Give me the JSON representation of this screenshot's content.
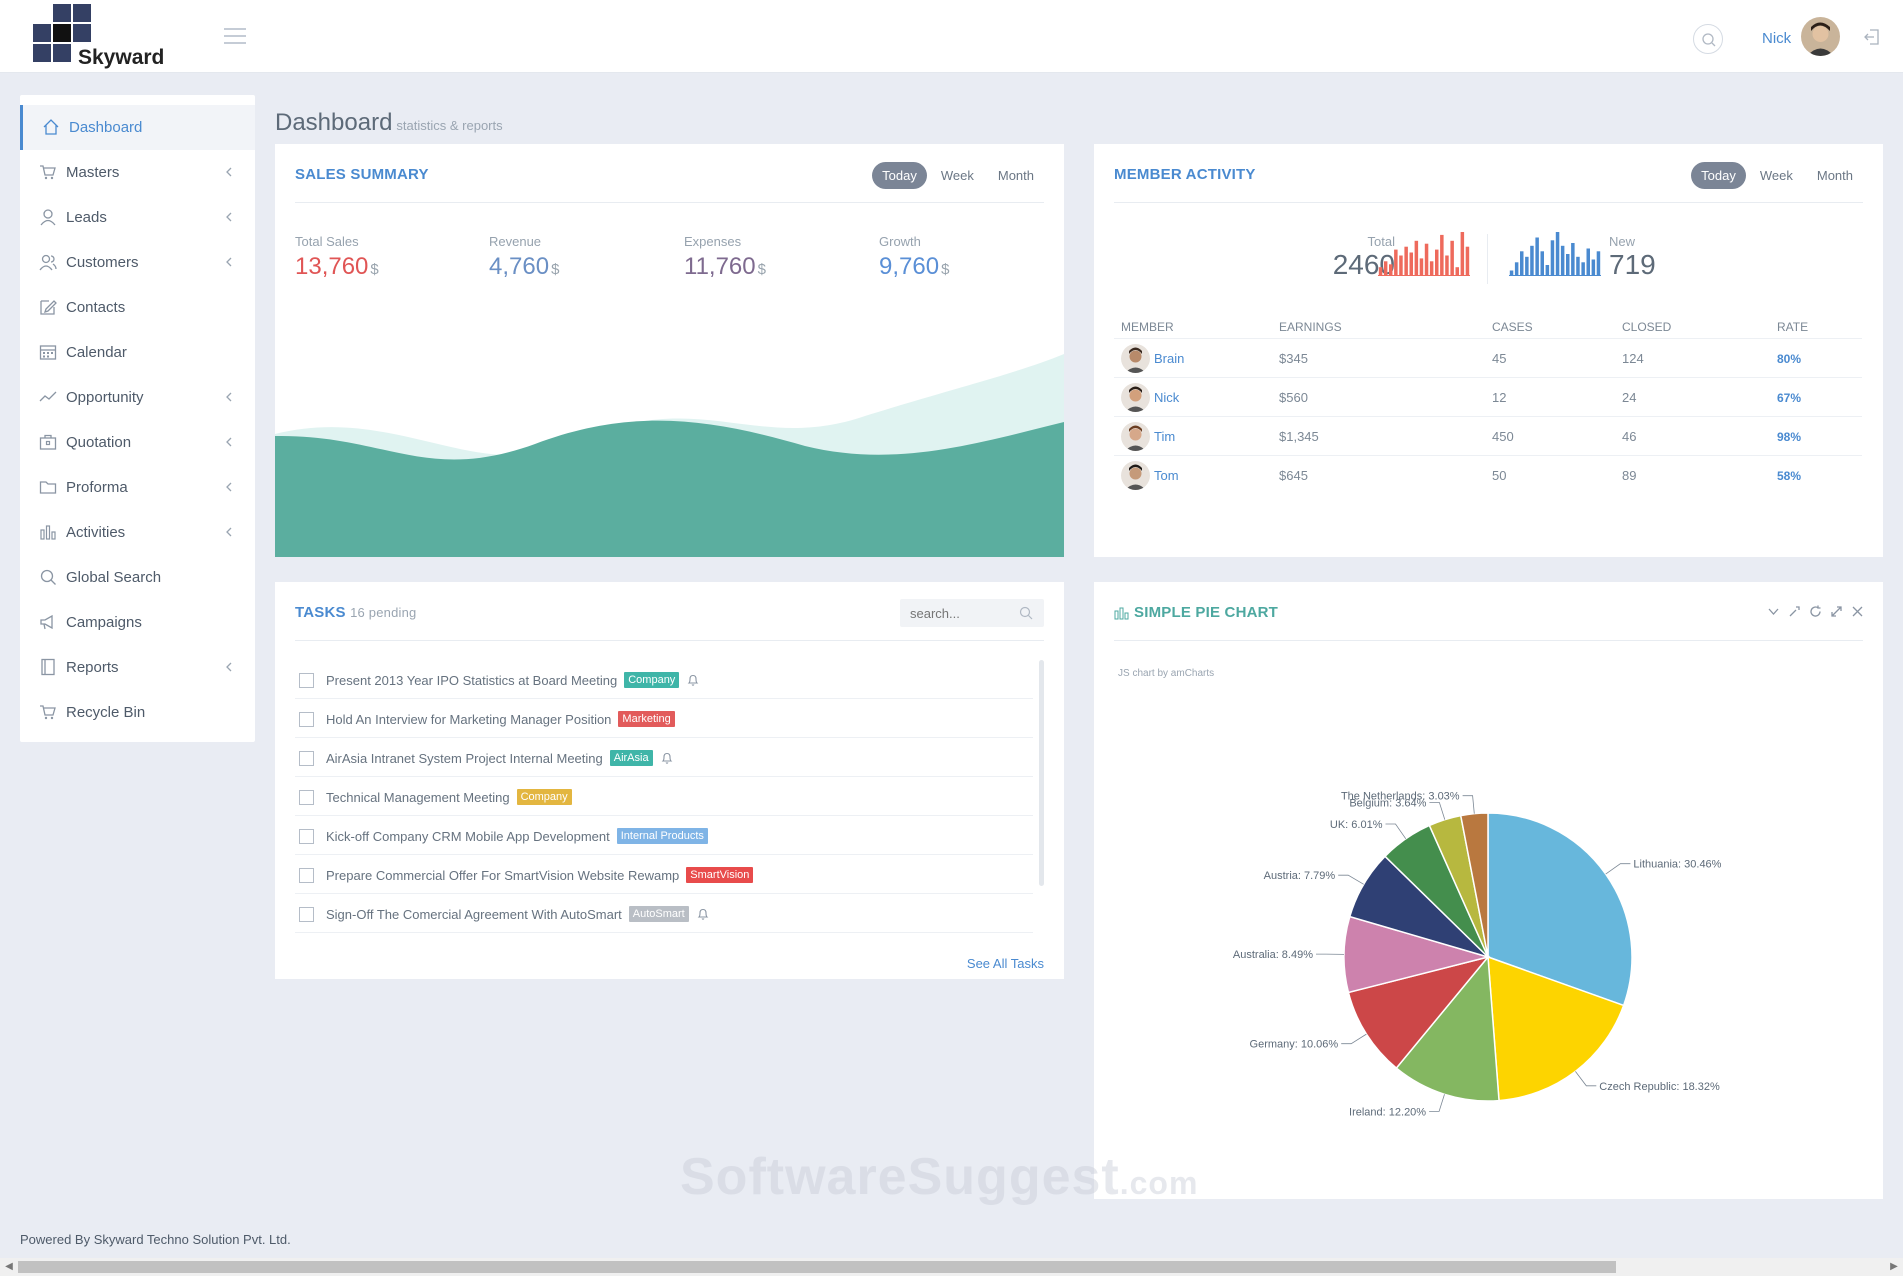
{
  "header": {
    "logo_text": "Skyward",
    "user_name": "Nick"
  },
  "sidebar": {
    "items": [
      {
        "label": "Dashboard",
        "icon": "home-icon",
        "active": true,
        "has_children": false
      },
      {
        "label": "Masters",
        "icon": "cart-icon",
        "has_children": true
      },
      {
        "label": "Leads",
        "icon": "user-icon",
        "has_children": true
      },
      {
        "label": "Customers",
        "icon": "users-icon",
        "has_children": true
      },
      {
        "label": "Contacts",
        "icon": "edit-icon",
        "has_children": false
      },
      {
        "label": "Calendar",
        "icon": "calendar-icon",
        "has_children": false
      },
      {
        "label": "Opportunity",
        "icon": "trend-icon",
        "has_children": true
      },
      {
        "label": "Quotation",
        "icon": "briefcase-icon",
        "has_children": true
      },
      {
        "label": "Proforma",
        "icon": "folder-icon",
        "has_children": true
      },
      {
        "label": "Activities",
        "icon": "bar-chart-icon",
        "has_children": true
      },
      {
        "label": "Global Search",
        "icon": "search-icon",
        "has_children": false
      },
      {
        "label": "Campaigns",
        "icon": "megaphone-icon",
        "has_children": false
      },
      {
        "label": "Reports",
        "icon": "book-icon",
        "has_children": true
      },
      {
        "label": "Recycle Bin",
        "icon": "cart-icon",
        "has_children": false
      }
    ]
  },
  "page": {
    "title": "Dashboard",
    "subtitle": "statistics & reports"
  },
  "sales_summary": {
    "title": "SALES SUMMARY",
    "tabs": [
      "Today",
      "Week",
      "Month"
    ],
    "stats": [
      {
        "label": "Total Sales",
        "value": "13,760",
        "unit": "$",
        "color": "#e05555"
      },
      {
        "label": "Revenue",
        "value": "4,760",
        "unit": "$",
        "color": "#6a8fc4"
      },
      {
        "label": "Expenses",
        "value": "11,760",
        "unit": "$",
        "color": "#7e6a8f"
      },
      {
        "label": "Growth",
        "value": "9,760",
        "unit": "$",
        "color": "#5a8fd6"
      }
    ],
    "area_colors": {
      "back": "#e0f3f1",
      "front": "#5bae9f"
    }
  },
  "member_activity": {
    "title": "MEMBER ACTIVITY",
    "tabs": [
      "Today",
      "Week",
      "Month"
    ],
    "total_label": "Total",
    "total_value": "2460",
    "new_label": "New",
    "new_value": "719",
    "total_bars": [
      3,
      5,
      4,
      9,
      7,
      10,
      8,
      12,
      6,
      11,
      5,
      9,
      14,
      7,
      12,
      3,
      15,
      10
    ],
    "new_bars": [
      2,
      5,
      9,
      7,
      11,
      14,
      9,
      4,
      13,
      16,
      11,
      8,
      12,
      7,
      5,
      10,
      6,
      9
    ],
    "columns": [
      "MEMBER",
      "EARNINGS",
      "CASES",
      "CLOSED",
      "RATE"
    ],
    "rows": [
      {
        "member": "Brain",
        "earnings": "$345",
        "cases": "45",
        "closed": "124",
        "rate": "80%"
      },
      {
        "member": "Nick",
        "earnings": "$560",
        "cases": "12",
        "closed": "24",
        "rate": "67%"
      },
      {
        "member": "Tim",
        "earnings": "$1,345",
        "cases": "450",
        "closed": "46",
        "rate": "98%"
      },
      {
        "member": "Tom",
        "earnings": "$645",
        "cases": "50",
        "closed": "89",
        "rate": "58%"
      }
    ]
  },
  "tasks": {
    "title": "TASKS",
    "pending": "16 pending",
    "search_placeholder": "search...",
    "see_all": "See All Tasks",
    "items": [
      {
        "text": "Present 2013 Year IPO Statistics at Board Meeting",
        "tag": "Company",
        "tag_color": "#3fb5a8",
        "bell": true
      },
      {
        "text": "Hold An Interview for Marketing Manager Position",
        "tag": "Marketing",
        "tag_color": "#e25b5b",
        "bell": false
      },
      {
        "text": "AirAsia Intranet System Project Internal Meeting",
        "tag": "AirAsia",
        "tag_color": "#3fb5a8",
        "bell": true
      },
      {
        "text": "Technical Management Meeting",
        "tag": "Company",
        "tag_color": "#e3b640",
        "bell": false
      },
      {
        "text": "Kick-off Company CRM Mobile App Development",
        "tag": "Internal Products",
        "tag_color": "#7fb4e6",
        "bell": false
      },
      {
        "text": "Prepare Commercial Offer For SmartVision Website Rewamp",
        "tag": "SmartVision",
        "tag_color": "#e84b4b",
        "bell": false
      },
      {
        "text": "Sign-Off The Comercial Agreement With AutoSmart",
        "tag": "AutoSmart",
        "tag_color": "#b9bec5",
        "bell": true
      }
    ]
  },
  "pie_panel": {
    "title": "SIMPLE PIE CHART",
    "credit": "JS chart by amCharts"
  },
  "chart_data": {
    "type": "pie",
    "title": "",
    "slices": [
      {
        "label": "Lithuania",
        "value": 30.46,
        "color": "#67b7dc"
      },
      {
        "label": "Czech Republic",
        "value": 18.32,
        "color": "#fdd400"
      },
      {
        "label": "Ireland",
        "value": 12.2,
        "color": "#84b761"
      },
      {
        "label": "Germany",
        "value": 10.06,
        "color": "#cc4748"
      },
      {
        "label": "Australia",
        "value": 8.49,
        "color": "#cd82ad"
      },
      {
        "label": "Austria",
        "value": 7.79,
        "color": "#2f4074"
      },
      {
        "label": "UK",
        "value": 6.01,
        "color": "#448e4d"
      },
      {
        "label": "Belgium",
        "value": 3.64,
        "color": "#b7b83f"
      },
      {
        "label": "The Netherlands",
        "value": 3.03,
        "color": "#b9783f"
      }
    ]
  },
  "footer": {
    "text": "Powered By Skyward Techno Solution Pvt. Ltd."
  },
  "watermark": {
    "main": "SoftwareSuggest",
    "suffix": ".com"
  }
}
